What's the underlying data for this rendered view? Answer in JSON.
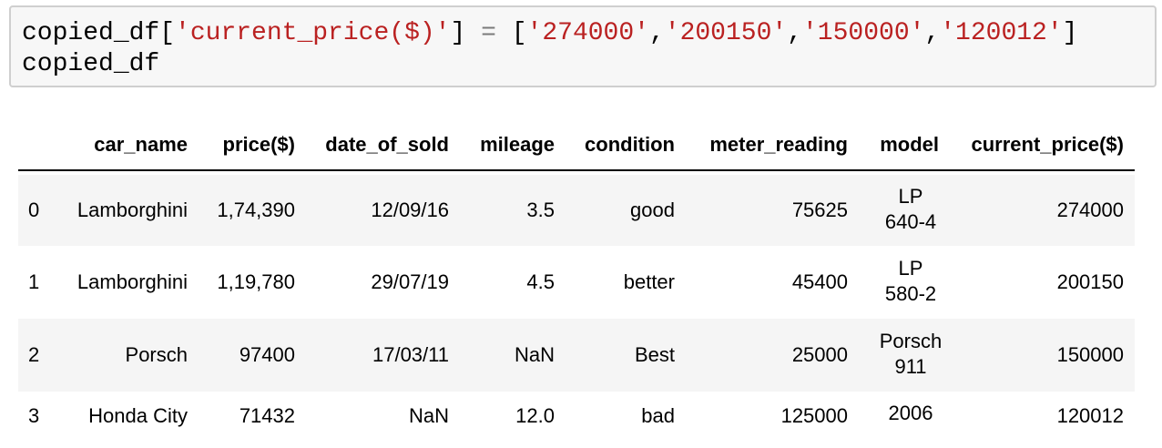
{
  "code_cell": {
    "line1": {
      "var": "copied_df[",
      "key": "'current_price($)'",
      "close": "]",
      "eq": " = ",
      "open": "[",
      "v1": "'274000'",
      "v2": "'200150'",
      "v3": "'150000'",
      "v4": "'120012'",
      "comma": ",",
      "end": "]"
    },
    "line2": "copied_df"
  },
  "dataframe": {
    "columns": [
      "car_name",
      "price($)",
      "date_of_sold",
      "mileage",
      "condition",
      "meter_reading",
      "model",
      "current_price($)"
    ],
    "rows": [
      {
        "index": "0",
        "car_name": "Lamborghini",
        "price": "1,74,390",
        "date_of_sold": "12/09/16",
        "mileage": "3.5",
        "condition": "good",
        "meter_reading": "75625",
        "model_l1": "LP",
        "model_l2": "640-4",
        "current_price": "274000"
      },
      {
        "index": "1",
        "car_name": "Lamborghini",
        "price": "1,19,780",
        "date_of_sold": "29/07/19",
        "mileage": "4.5",
        "condition": "better",
        "meter_reading": "45400",
        "model_l1": "LP",
        "model_l2": "580-2",
        "current_price": "200150"
      },
      {
        "index": "2",
        "car_name": "Porsch",
        "price": "97400",
        "date_of_sold": "17/03/11",
        "mileage": "NaN",
        "condition": "Best",
        "meter_reading": "25000",
        "model_l1": "Porsch",
        "model_l2": "911",
        "current_price": "150000"
      },
      {
        "index": "3",
        "car_name": "Honda City",
        "price": "71432",
        "date_of_sold": "NaN",
        "mileage": "12.0",
        "condition": "bad",
        "meter_reading": "125000",
        "model_l1": "2006",
        "model_l2": "",
        "current_price": "120012"
      }
    ]
  }
}
